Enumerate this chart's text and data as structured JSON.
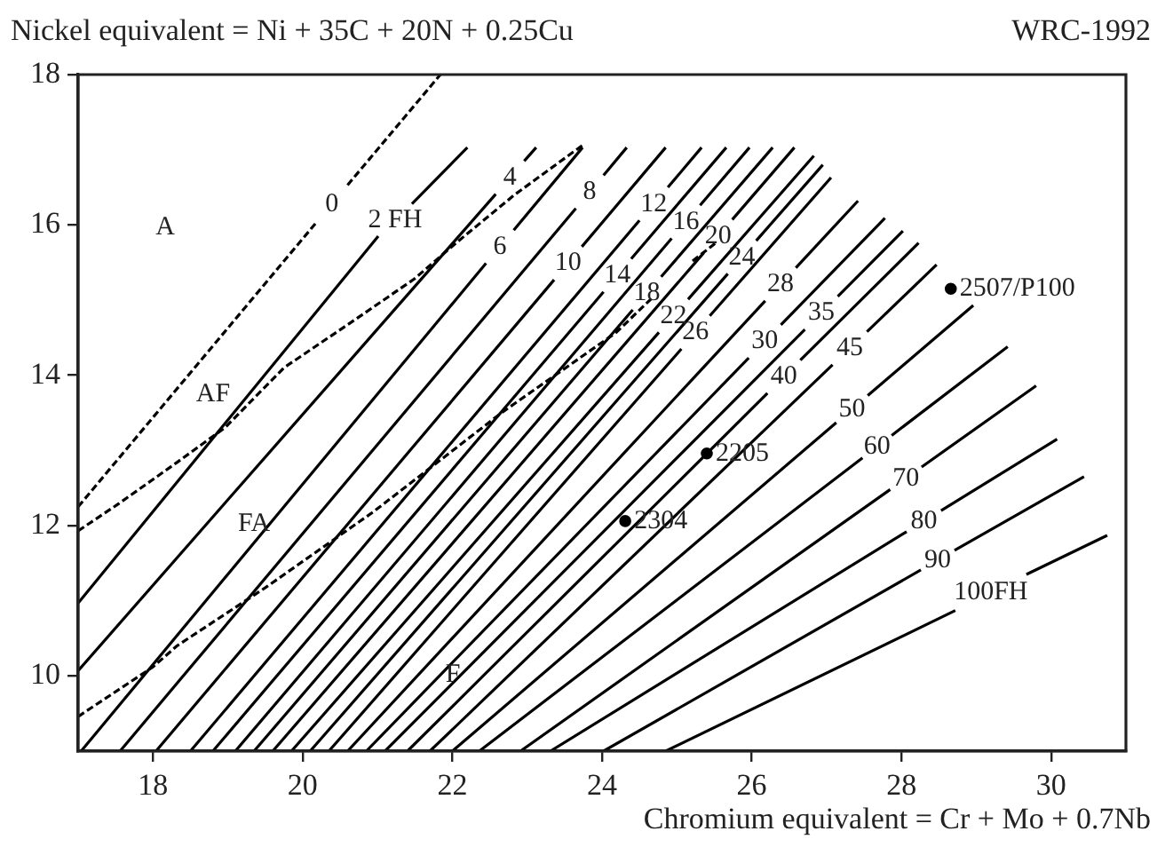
{
  "chart_data": {
    "type": "line",
    "title": "WRC-1992",
    "xlabel": "Chromium equivalent = Cr + Mo + 0.7Nb",
    "ylabel": "Nickel equivalent = Ni + 35C + 20N + 0.25Cu",
    "xlim": [
      17,
      31
    ],
    "ylim": [
      9,
      18
    ],
    "xticks": [
      18,
      20,
      22,
      24,
      26,
      28,
      30
    ],
    "yticks": [
      10,
      12,
      14,
      16,
      18
    ],
    "grid": false,
    "legend": false,
    "marker": "none",
    "series": [
      {
        "name": "0",
        "color": "#000000",
        "line_style": "dashed",
        "x": [
          17,
          20.18,
          null,
          20.6,
          21.84
        ],
        "values": [
          12.25,
          16.03,
          null,
          16.53,
          18
        ]
      },
      {
        "color": "#000000",
        "line_style": "dashed",
        "x": [
          17,
          17.54,
          18.32,
          18.97,
          19.75,
          20.7,
          21.49,
          22.05,
          22.83,
          23.74
        ],
        "values": [
          11.93,
          12.29,
          12.84,
          13.31,
          14.1,
          14.74,
          15.28,
          15.76,
          16.4,
          17.06
        ]
      },
      {
        "color": "#000000",
        "line_style": "dashed",
        "x": [
          17,
          18,
          18.32,
          19.51,
          20.94,
          22.67,
          24.19,
          24.66,
          null,
          25.21,
          25.52
        ],
        "values": [
          9.46,
          10.12,
          10.4,
          11.18,
          12.18,
          13.51,
          14.57,
          15.02,
          null,
          15.52,
          15.76
        ]
      },
      {
        "name": "2 FH",
        "color": "#000000",
        "line_style": "solid",
        "x": [
          17,
          21.01,
          null,
          21.46,
          22.2
        ],
        "values": [
          10.97,
          15.85,
          null,
          16.28,
          17.03
        ]
      },
      {
        "name": "4",
        "color": "#000000",
        "line_style": "solid",
        "x": [
          17,
          22.58,
          null,
          22.96,
          23.12
        ],
        "values": [
          10.07,
          16.41,
          null,
          16.85,
          17.03
        ]
      },
      {
        "name": "6",
        "color": "#000000",
        "line_style": "solid",
        "x": [
          17.04,
          22.45,
          null,
          22.82,
          23.74
        ],
        "values": [
          9,
          15.49,
          null,
          15.93,
          17.03
        ]
      },
      {
        "name": "8",
        "color": "#000000",
        "line_style": "solid",
        "x": [
          17.56,
          23.65,
          null,
          24.02,
          24.33
        ],
        "values": [
          9,
          16.22,
          null,
          16.66,
          17.03
        ]
      },
      {
        "name": "10",
        "color": "#000000",
        "line_style": "solid",
        "x": [
          18.04,
          23.36,
          null,
          23.73,
          24.85
        ],
        "values": [
          9,
          15.27,
          null,
          15.71,
          17.03
        ]
      },
      {
        "name": "12",
        "color": "#000000",
        "line_style": "solid",
        "x": [
          18.5,
          24.5,
          null,
          24.88,
          25.33
        ],
        "values": [
          9,
          16.06,
          null,
          16.5,
          17.03
        ]
      },
      {
        "name": "14",
        "color": "#000000",
        "line_style": "solid",
        "x": [
          18.8,
          24.02,
          null,
          24.39,
          25.66
        ],
        "values": [
          9,
          15.11,
          null,
          15.55,
          17.03
        ]
      },
      {
        "name": "16",
        "color": "#000000",
        "line_style": "solid",
        "x": [
          19.1,
          24.93,
          null,
          25.31,
          25.97
        ],
        "values": [
          9,
          15.82,
          null,
          16.26,
          17.03
        ]
      },
      {
        "name": "18",
        "color": "#000000",
        "line_style": "solid",
        "x": [
          19.35,
          24.41,
          null,
          24.79,
          26.28
        ],
        "values": [
          9,
          14.87,
          null,
          15.31,
          17.03
        ]
      },
      {
        "name": "20",
        "color": "#000000",
        "line_style": "solid",
        "x": [
          19.6,
          25.36,
          null,
          25.74,
          26.57
        ],
        "values": [
          9,
          15.63,
          null,
          16.07,
          17.03
        ]
      },
      {
        "name": "22",
        "color": "#000000",
        "line_style": "solid",
        "x": [
          19.85,
          24.76,
          null,
          25.15,
          26.83
        ],
        "values": [
          9,
          14.57,
          null,
          15.01,
          16.92
        ]
      },
      {
        "name": "24",
        "color": "#000000",
        "line_style": "solid",
        "x": [
          20.1,
          25.68,
          null,
          26.06,
          26.95
        ],
        "values": [
          9,
          15.35,
          null,
          15.79,
          16.8
        ]
      },
      {
        "name": "26",
        "color": "#000000",
        "line_style": "solid",
        "x": [
          20.35,
          25.06,
          null,
          25.44,
          27.06
        ],
        "values": [
          9,
          14.35,
          null,
          14.79,
          16.63
        ]
      },
      {
        "name": "28",
        "color": "#000000",
        "line_style": "solid",
        "x": [
          20.6,
          26.18,
          null,
          26.59,
          27.42
        ],
        "values": [
          9,
          14.99,
          null,
          15.43,
          16.32
        ]
      },
      {
        "name": "30",
        "color": "#000000",
        "line_style": "solid",
        "x": [
          20.85,
          25.96,
          null,
          26.39,
          27.78
        ],
        "values": [
          9,
          14.23,
          null,
          14.67,
          16.09
        ]
      },
      {
        "name": "35",
        "color": "#000000",
        "line_style": "solid",
        "x": [
          21.1,
          26.71,
          null,
          27.15,
          28.02
        ],
        "values": [
          9,
          14.61,
          null,
          15.05,
          15.92
        ]
      },
      {
        "name": "40",
        "color": "#000000",
        "line_style": "solid",
        "x": [
          21.4,
          26.21,
          null,
          26.65,
          28.23
        ],
        "values": [
          9,
          13.76,
          null,
          14.2,
          15.76
        ]
      },
      {
        "name": "45",
        "color": "#000000",
        "line_style": "solid",
        "x": [
          21.7,
          27.08,
          null,
          27.54,
          28.47
        ],
        "values": [
          9,
          14.14,
          null,
          14.58,
          15.47
        ]
      },
      {
        "name": "50",
        "color": "#000000",
        "line_style": "solid",
        "x": [
          22,
          27.13,
          null,
          27.55,
          28.96
        ],
        "values": [
          9,
          13.37,
          null,
          13.73,
          14.93
        ]
      },
      {
        "name": "60",
        "color": "#000000",
        "line_style": "solid",
        "x": [
          22.36,
          27.48,
          null,
          27.87,
          29.42
        ],
        "values": [
          9,
          12.9,
          null,
          13.2,
          14.38
        ]
      },
      {
        "name": "70",
        "color": "#000000",
        "line_style": "solid",
        "x": [
          22.91,
          27.85,
          null,
          28.27,
          29.8
        ],
        "values": [
          9,
          12.48,
          null,
          12.78,
          13.86
        ]
      },
      {
        "name": "80",
        "color": "#000000",
        "line_style": "solid",
        "x": [
          23.31,
          28.07,
          null,
          28.53,
          30.08
        ],
        "values": [
          9,
          11.92,
          null,
          12.2,
          13.15
        ]
      },
      {
        "name": "90",
        "color": "#000000",
        "line_style": "solid",
        "x": [
          24.02,
          28.26,
          null,
          28.71,
          30.44
        ],
        "values": [
          9,
          11.41,
          null,
          11.67,
          12.65
        ]
      },
      {
        "name": "100FH",
        "color": "#000000",
        "line_style": "solid",
        "x": [
          24.85,
          28.72,
          null,
          29.67,
          30.75
        ],
        "values": [
          9,
          10.87,
          null,
          11.35,
          11.87
        ]
      },
      {
        "type": "scatter",
        "marker": "circle",
        "color": "#000000",
        "x": [
          28.66,
          25.4,
          24.31
        ],
        "values": [
          15.15,
          12.96,
          12.06
        ]
      }
    ],
    "annotations": [
      "A",
      "AF",
      "FA",
      "F",
      {
        "text": "2507/P100",
        "x": 28.66,
        "y": 15.15
      },
      {
        "text": "2205",
        "x": 25.4,
        "y": 12.96
      },
      {
        "text": "2304",
        "x": 24.31,
        "y": 12.06
      }
    ]
  }
}
